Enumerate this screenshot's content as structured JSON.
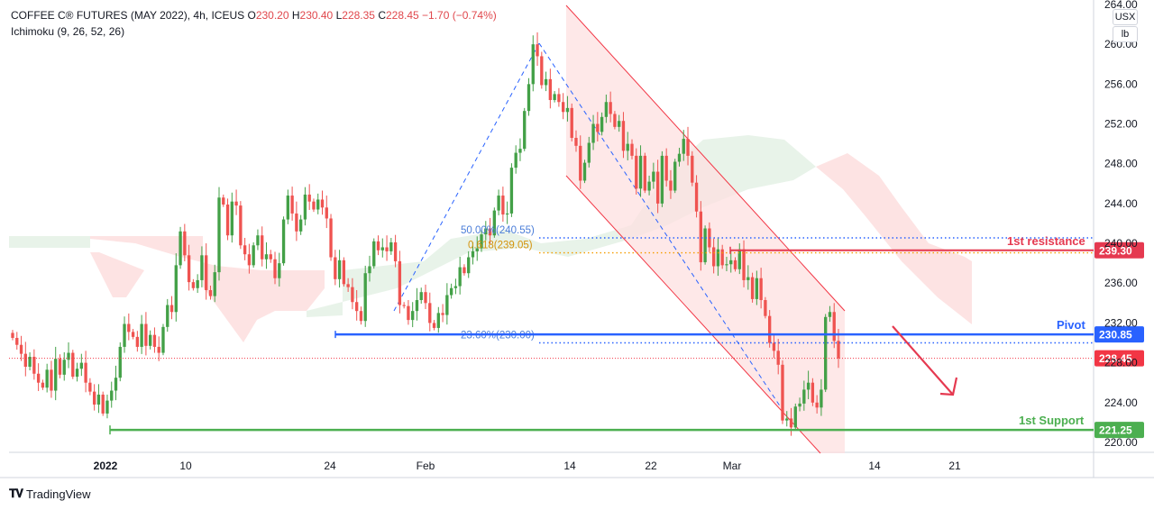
{
  "header": {
    "symbol": "COFFEE C® FUTURES (MAY 2022), 4h, ICEUS",
    "o_label": "O",
    "o": "230.20",
    "h_label": "H",
    "h": "230.40",
    "l_label": "L",
    "l": "228.35",
    "c_label": "C",
    "c": "228.45",
    "change": "−1.70 (−0.74%)",
    "indicator": "Ichimoku (9, 26, 52, 26)"
  },
  "units": {
    "currency": "USX",
    "unit": "lb"
  },
  "brand": {
    "name": "TradingView"
  },
  "colors": {
    "up": "#43a047",
    "down": "#ef5350",
    "pivot": "#2962ff",
    "support": "#4caf50",
    "resistance": "#e53950",
    "last": "#f23645",
    "cloud_bull": "#e8f3e9",
    "cloud_bear": "#fde3e3",
    "channel": "#f23645"
  },
  "chart_data": {
    "type": "candlestick",
    "ylim": [
      219,
      264
    ],
    "y_ticks": [
      "220.00",
      "224.00",
      "228.00",
      "232.00",
      "236.00",
      "240.00",
      "244.00",
      "248.00",
      "252.00",
      "256.00",
      "260.00",
      "264.00"
    ],
    "x_ticks": [
      "2022",
      "10",
      "24",
      "Feb",
      "14",
      "22",
      "Mar",
      "14",
      "21"
    ],
    "levels": [
      {
        "name": "1st resistance",
        "label": "1st resistance",
        "value": 239.3,
        "tag": "239.30",
        "style": "solid"
      },
      {
        "name": "Pivot",
        "label": "Pivot",
        "value": 230.85,
        "tag": "230.85",
        "style": "solid"
      },
      {
        "name": "1st Support",
        "label": "1st Support",
        "value": 221.25,
        "tag": "221.25",
        "style": "solid"
      },
      {
        "name": "last",
        "label": "",
        "value": 228.45,
        "tag": "228.45",
        "style": "dotted"
      }
    ],
    "fib": [
      {
        "label": "50.00%(240.55)",
        "value": 240.55
      },
      {
        "label": "0.618(239.05)",
        "value": 239.05
      },
      {
        "label": "23.60%(230.00)",
        "value": 230.0
      }
    ],
    "closes": [
      230.5,
      229.8,
      228.9,
      227.6,
      228.6,
      226.9,
      226.0,
      225.5,
      227.3,
      225.2,
      228.4,
      226.8,
      228.3,
      229.0,
      226.6,
      227.4,
      228.0,
      226.0,
      225.1,
      223.8,
      224.8,
      222.9,
      224.2,
      225.2,
      226.5,
      229.6,
      231.9,
      231.1,
      230.6,
      229.6,
      231.9,
      229.7,
      230.8,
      229.6,
      229.0,
      231.6,
      233.8,
      233.1,
      237.8,
      241.2,
      238.8,
      236.1,
      235.5,
      236.3,
      238.8,
      235.3,
      234.7,
      237.1,
      244.6,
      243.9,
      240.8,
      244.2,
      243.8,
      239.8,
      238.9,
      237.8,
      239.8,
      240.8,
      238.4,
      238.9,
      238.4,
      236.5,
      238.0,
      242.4,
      244.8,
      243.0,
      241.2,
      242.4,
      244.9,
      244.2,
      243.4,
      244.4,
      243.6,
      242.5,
      238.6,
      236.4,
      238.3,
      235.9,
      235.6,
      234.1,
      233.2,
      232.2,
      237.0,
      237.7,
      240.2,
      239.3,
      239.6,
      239.2,
      240.1,
      238.2,
      233.8,
      233.7,
      232.3,
      233.2,
      234.3,
      235.1,
      234.0,
      232.0,
      231.5,
      233.0,
      232.8,
      234.8,
      235.5,
      235.7,
      237.6,
      237.0,
      238.6,
      239.2,
      239.5,
      240.9,
      241.5,
      240.8,
      243.3,
      244.8,
      242.9,
      243.0,
      247.6,
      249.1,
      249.5,
      253.3,
      256.0,
      260.0,
      258.8,
      255.9,
      256.5,
      254.4,
      255.0,
      254.2,
      253.2,
      253.6,
      250.6,
      249.8,
      246.3,
      248.1,
      250.1,
      252.0,
      251.2,
      252.7,
      254.2,
      253.0,
      251.7,
      252.3,
      249.3,
      250.0,
      248.8,
      245.5,
      248.8,
      245.3,
      246.2,
      247.2,
      244.0,
      248.8,
      246.3,
      245.3,
      248.2,
      249.0,
      250.5,
      248.8,
      246.1,
      243.2,
      238.1,
      241.5,
      239.6,
      237.7,
      239.4,
      237.8,
      237.9,
      238.3,
      237.4,
      239.4,
      236.3,
      236.6,
      234.4,
      236.5,
      234.3,
      232.7,
      230.0,
      229.2,
      227.8,
      222.2,
      222.4,
      221.5,
      223.6,
      223.9,
      225.3,
      226.0,
      224.0,
      223.5,
      225.3,
      232.6,
      233.1,
      230.2,
      228.45
    ]
  }
}
